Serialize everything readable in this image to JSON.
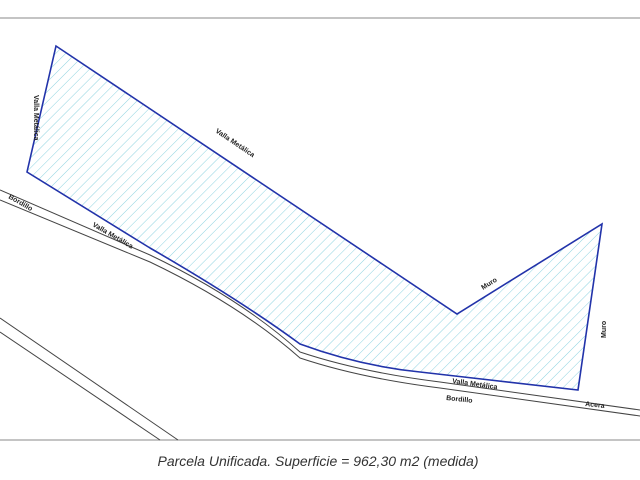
{
  "labels": [
    "Valla Metálica",
    "Valla Metálica",
    "Bordillo",
    "Valla Metálica",
    "Muro",
    "Muro",
    "Valla Metálica",
    "Bordillo",
    "Acera"
  ],
  "caption": "Parcela Unificada. Superficie = 962,30 m2 (medida)"
}
